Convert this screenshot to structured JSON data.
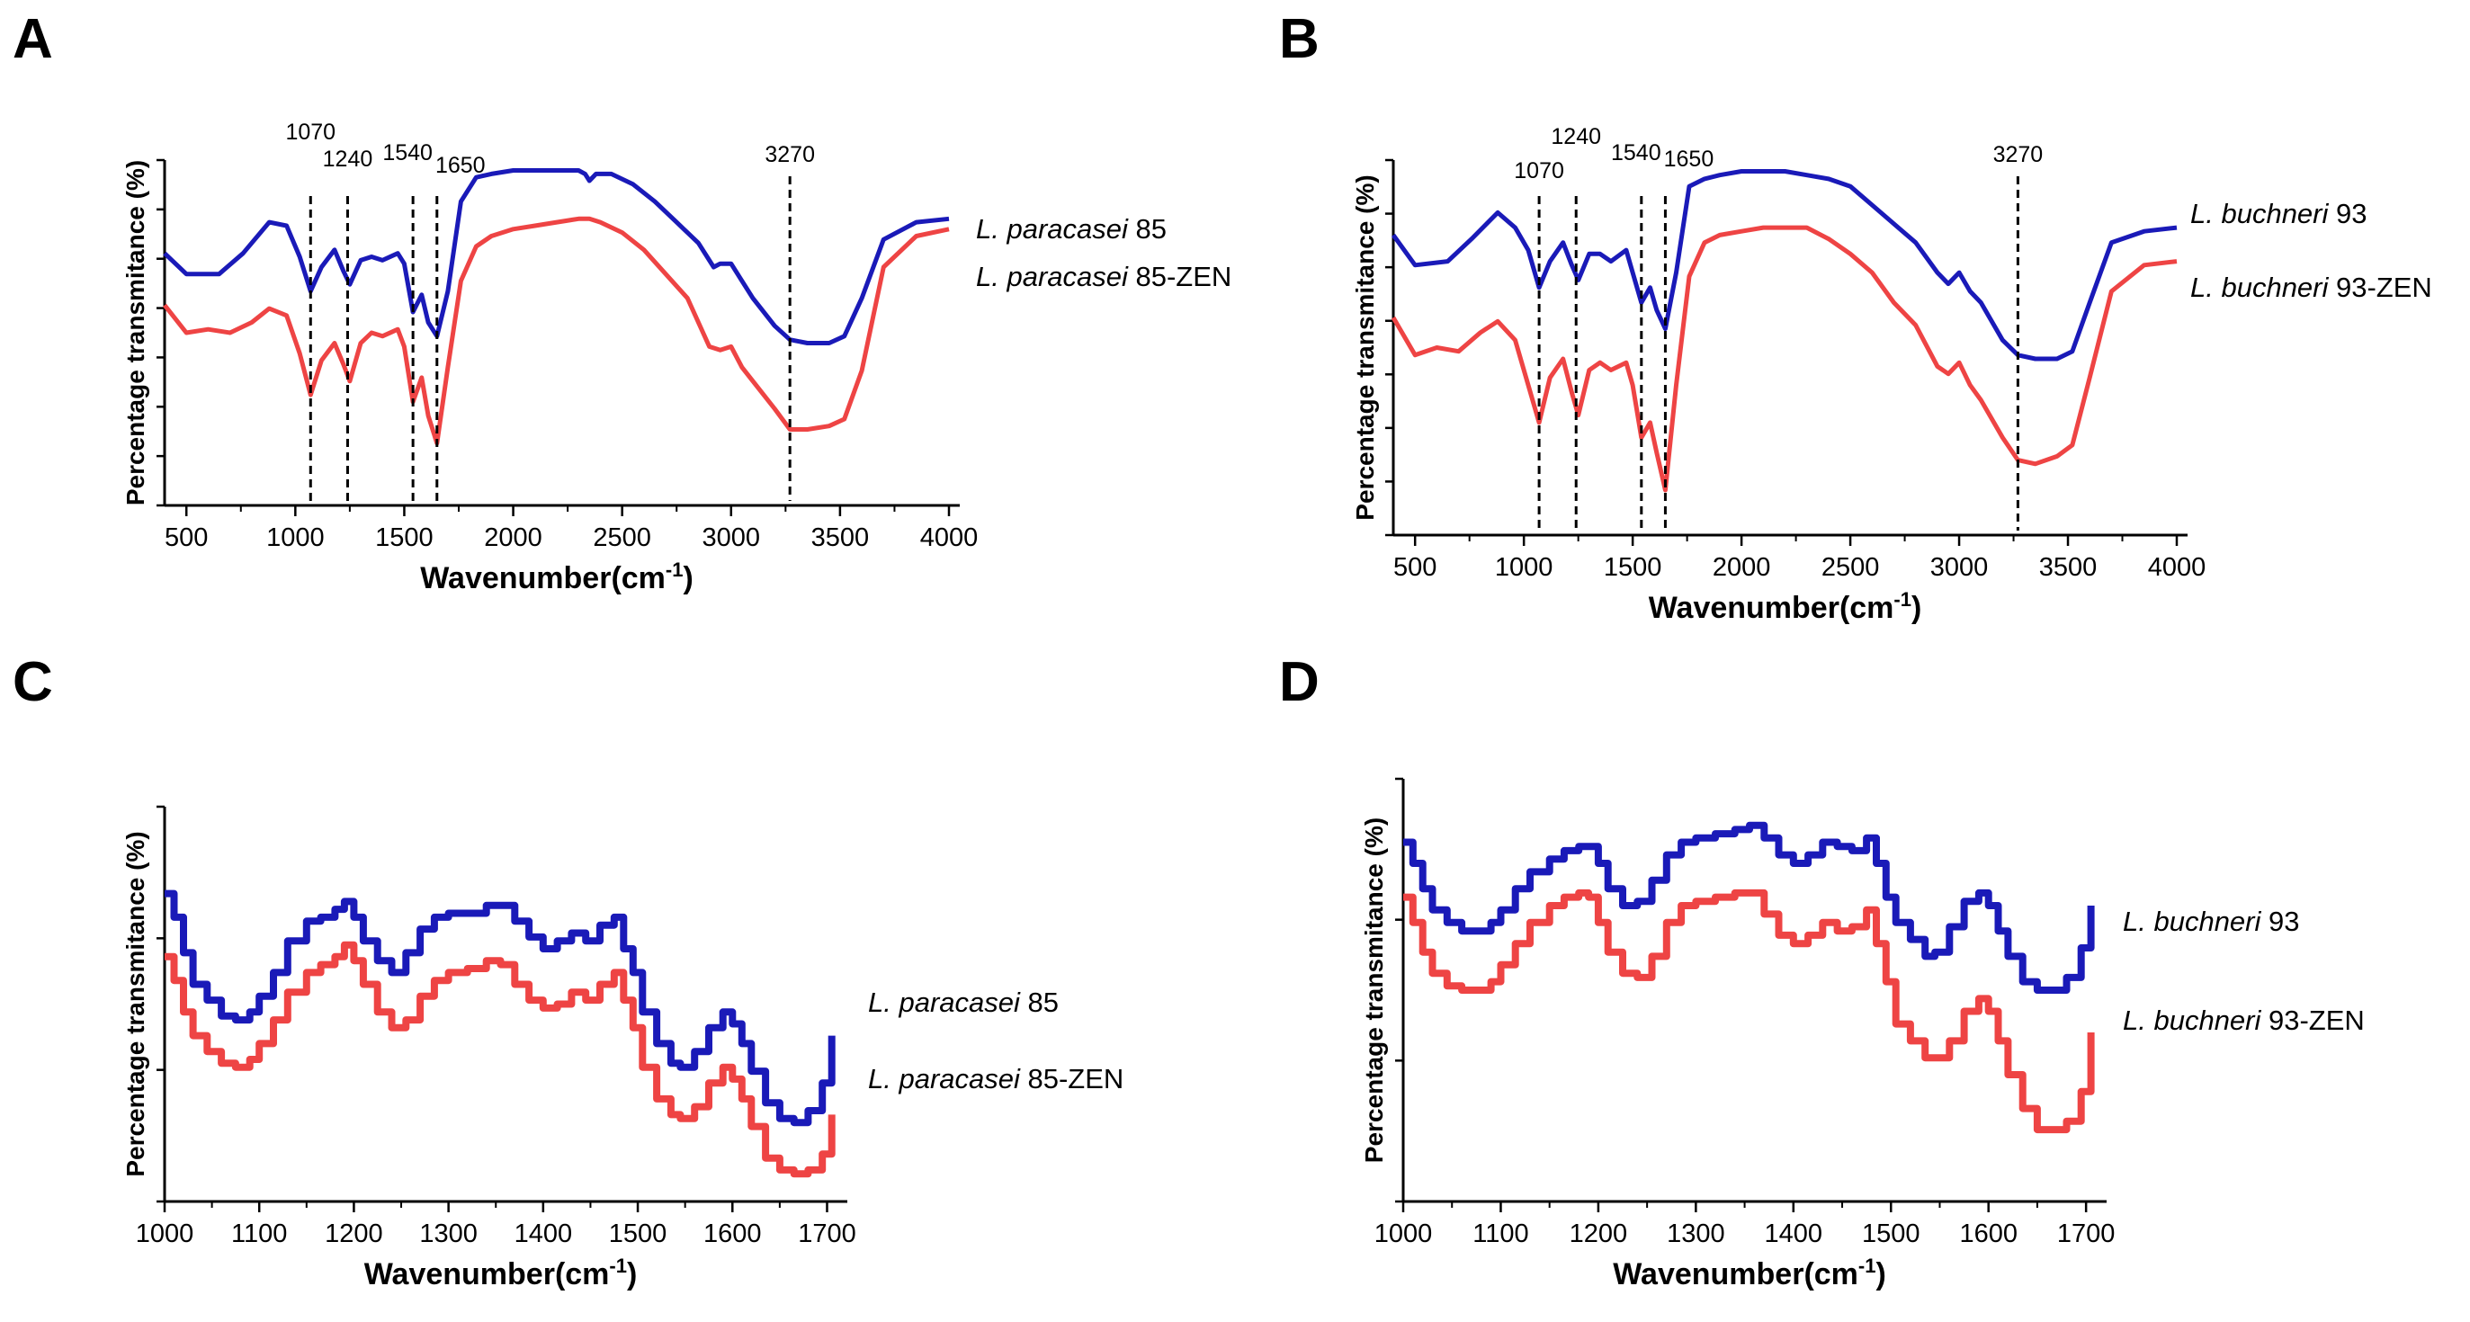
{
  "figure": {
    "panel_letters": [
      "A",
      "B",
      "C",
      "D"
    ]
  },
  "series_colors": {
    "blue": "#1a1ab8",
    "red": "#ee4444"
  },
  "chart_data": [
    {
      "panel": "A",
      "type": "line",
      "title": "",
      "xlabel_main": "Wavenumber(cm",
      "xlabel_sup": "-1",
      "xlabel_end": ")",
      "ylabel": "Percentage transmitance (%)",
      "xlim": [
        400,
        4000
      ],
      "ylim": [
        0,
        100
      ],
      "xticks": [
        500,
        1000,
        1500,
        2000,
        2500,
        3000,
        3500,
        4000
      ],
      "y_minor_ticks": 7,
      "peaks": [
        1070,
        1240,
        1540,
        1650,
        3270
      ],
      "peak_labels": [
        "1070",
        "1240",
        "1540",
        "1650",
        "3270"
      ],
      "legend_prefix": [
        "L. paracasei",
        "L. paracasei"
      ],
      "legend_suffix": [
        " 85",
        " 85-ZEN"
      ],
      "series": [
        {
          "name": "L. paracasei 85",
          "color": "#1a1ab8",
          "x": [
            400,
            500,
            650,
            760,
            880,
            960,
            1020,
            1070,
            1120,
            1180,
            1220,
            1250,
            1300,
            1350,
            1400,
            1470,
            1500,
            1540,
            1580,
            1610,
            1650,
            1700,
            1760,
            1830,
            1900,
            2000,
            2100,
            2200,
            2300,
            2330,
            2350,
            2380,
            2450,
            2550,
            2650,
            2750,
            2850,
            2920,
            2950,
            3000,
            3050,
            3100,
            3200,
            3270,
            3350,
            3450,
            3520,
            3600,
            3700,
            3850,
            4000
          ],
          "y": [
            73,
            67,
            67,
            73,
            82,
            81,
            72,
            62,
            69,
            74,
            68,
            64,
            71,
            72,
            71,
            73,
            70,
            56,
            61,
            53,
            49,
            62,
            88,
            95,
            96,
            97,
            97,
            97,
            97,
            96,
            94,
            96,
            96,
            93,
            88,
            82,
            76,
            69,
            70,
            70,
            65,
            60,
            52,
            48,
            47,
            47,
            49,
            60,
            77,
            82,
            83
          ]
        },
        {
          "name": "L. paracasei 85-ZEN",
          "color": "#ee4444",
          "x": [
            400,
            500,
            600,
            700,
            800,
            880,
            960,
            1020,
            1070,
            1120,
            1180,
            1220,
            1250,
            1300,
            1350,
            1400,
            1470,
            1500,
            1540,
            1580,
            1610,
            1650,
            1700,
            1760,
            1830,
            1900,
            2000,
            2100,
            2200,
            2300,
            2350,
            2400,
            2500,
            2600,
            2700,
            2800,
            2900,
            2950,
            3000,
            3050,
            3100,
            3200,
            3270,
            3350,
            3450,
            3520,
            3600,
            3700,
            3850,
            4000
          ],
          "y": [
            58,
            50,
            51,
            50,
            53,
            57,
            55,
            44,
            32,
            42,
            47,
            41,
            36,
            47,
            50,
            49,
            51,
            46,
            30,
            37,
            26,
            18,
            40,
            65,
            75,
            78,
            80,
            81,
            82,
            83,
            83,
            82,
            79,
            74,
            67,
            60,
            46,
            45,
            46,
            40,
            36,
            28,
            22,
            22,
            23,
            25,
            39,
            69,
            78,
            80
          ]
        }
      ]
    },
    {
      "panel": "B",
      "type": "line",
      "title": "",
      "xlabel_main": "Wavenumber(cm",
      "xlabel_sup": "-1",
      "xlabel_end": ")",
      "ylabel": "Percentage transmitance (%)",
      "xlim": [
        400,
        4000
      ],
      "ylim": [
        0,
        100
      ],
      "xticks": [
        500,
        1000,
        1500,
        2000,
        2500,
        3000,
        3500,
        4000
      ],
      "y_minor_ticks": 7,
      "peaks": [
        1070,
        1240,
        1540,
        1650,
        3270
      ],
      "peak_labels": [
        "1070",
        "1240",
        "1540",
        "1650",
        "3270"
      ],
      "legend_prefix": [
        "L. buchneri",
        "L. buchneri"
      ],
      "legend_suffix": [
        "  93",
        "  93-ZEN"
      ],
      "series": [
        {
          "name": "L. buchneri 93",
          "color": "#1a1ab8",
          "x": [
            400,
            500,
            650,
            760,
            880,
            960,
            1020,
            1070,
            1120,
            1180,
            1220,
            1250,
            1300,
            1350,
            1400,
            1470,
            1500,
            1540,
            1580,
            1610,
            1650,
            1700,
            1760,
            1830,
            1900,
            2000,
            2100,
            2200,
            2300,
            2400,
            2500,
            2600,
            2700,
            2800,
            2900,
            2950,
            3000,
            3050,
            3100,
            3200,
            3270,
            3350,
            3450,
            3520,
            3600,
            3700,
            3850,
            4000
          ],
          "y": [
            80,
            72,
            73,
            79,
            86,
            82,
            76,
            66,
            73,
            78,
            72,
            68,
            75,
            75,
            73,
            76,
            70,
            62,
            66,
            60,
            55,
            70,
            93,
            95,
            96,
            97,
            97,
            97,
            96,
            95,
            93,
            88,
            83,
            78,
            70,
            67,
            70,
            65,
            62,
            52,
            48,
            47,
            47,
            49,
            62,
            78,
            81,
            82
          ]
        },
        {
          "name": "L. buchneri 93-ZEN",
          "color": "#ee4444",
          "x": [
            400,
            500,
            600,
            700,
            800,
            880,
            960,
            1020,
            1070,
            1120,
            1180,
            1220,
            1250,
            1300,
            1350,
            1400,
            1470,
            1500,
            1540,
            1580,
            1610,
            1650,
            1700,
            1760,
            1830,
            1900,
            2000,
            2100,
            2200,
            2300,
            2400,
            2500,
            2600,
            2700,
            2800,
            2900,
            2950,
            3000,
            3050,
            3100,
            3200,
            3270,
            3350,
            3450,
            3520,
            3600,
            3700,
            3850,
            4000
          ],
          "y": [
            58,
            48,
            50,
            49,
            54,
            57,
            52,
            40,
            30,
            42,
            47,
            38,
            32,
            44,
            46,
            44,
            46,
            40,
            26,
            30,
            22,
            12,
            40,
            69,
            78,
            80,
            81,
            82,
            82,
            82,
            79,
            75,
            70,
            62,
            56,
            45,
            43,
            46,
            40,
            36,
            26,
            20,
            19,
            21,
            24,
            42,
            65,
            72,
            73
          ]
        }
      ]
    },
    {
      "panel": "C",
      "type": "line",
      "step": true,
      "title": "",
      "xlabel_main": "Wavenumber(cm",
      "xlabel_sup": "-1",
      "xlabel_end": ")",
      "ylabel": "Percentage transmitance (%)",
      "xlim": [
        1000,
        1710
      ],
      "ylim": [
        0,
        100
      ],
      "xticks": [
        1000,
        1100,
        1200,
        1300,
        1400,
        1500,
        1600,
        1700
      ],
      "y_minor_ticks": 3,
      "legend_prefix": [
        "L. paracasei",
        "L. paracasei"
      ],
      "legend_suffix": [
        " 85",
        " 85-ZEN"
      ],
      "series": [
        {
          "name": "L. paracasei 85",
          "color": "#1a1ab8",
          "x": [
            1000,
            1010,
            1020,
            1030,
            1045,
            1060,
            1075,
            1090,
            1100,
            1115,
            1130,
            1150,
            1165,
            1180,
            1190,
            1200,
            1210,
            1225,
            1240,
            1255,
            1270,
            1285,
            1300,
            1320,
            1340,
            1355,
            1370,
            1385,
            1400,
            1415,
            1430,
            1445,
            1460,
            1475,
            1485,
            1495,
            1505,
            1520,
            1535,
            1545,
            1560,
            1575,
            1590,
            1600,
            1610,
            1620,
            1635,
            1650,
            1665,
            1680,
            1695,
            1705
          ],
          "y": [
            78,
            72,
            63,
            55,
            51,
            47,
            46,
            48,
            52,
            58,
            66,
            71,
            72,
            74,
            76,
            72,
            66,
            61,
            58,
            63,
            69,
            72,
            73,
            73,
            75,
            75,
            71,
            67,
            64,
            66,
            68,
            66,
            70,
            72,
            64,
            58,
            48,
            40,
            35,
            34,
            38,
            44,
            48,
            45,
            40,
            33,
            25,
            21,
            20,
            23,
            30,
            42
          ]
        },
        {
          "name": "L. paracasei 85-ZEN",
          "color": "#ee4444",
          "x": [
            1000,
            1010,
            1020,
            1030,
            1045,
            1060,
            1075,
            1090,
            1100,
            1115,
            1130,
            1150,
            1165,
            1180,
            1190,
            1200,
            1210,
            1225,
            1240,
            1255,
            1270,
            1285,
            1300,
            1320,
            1340,
            1355,
            1370,
            1385,
            1400,
            1415,
            1430,
            1445,
            1460,
            1475,
            1485,
            1495,
            1505,
            1520,
            1535,
            1545,
            1560,
            1575,
            1590,
            1600,
            1610,
            1620,
            1635,
            1650,
            1665,
            1680,
            1695,
            1705
          ],
          "y": [
            62,
            56,
            48,
            42,
            38,
            35,
            34,
            36,
            40,
            46,
            53,
            58,
            60,
            62,
            65,
            61,
            55,
            48,
            44,
            46,
            52,
            56,
            58,
            59,
            61,
            60,
            55,
            51,
            49,
            50,
            53,
            51,
            55,
            58,
            51,
            44,
            34,
            26,
            22,
            21,
            24,
            30,
            34,
            31,
            26,
            19,
            11,
            8,
            7,
            8,
            12,
            22
          ]
        }
      ]
    },
    {
      "panel": "D",
      "type": "line",
      "step": true,
      "title": "",
      "xlabel_main": "Wavenumber(cm",
      "xlabel_sup": "-1",
      "xlabel_end": ")",
      "ylabel": "Percentage transmitance (%)",
      "xlim": [
        1000,
        1710
      ],
      "ylim": [
        0,
        100
      ],
      "xticks": [
        1000,
        1100,
        1200,
        1300,
        1400,
        1500,
        1600,
        1700
      ],
      "y_minor_ticks": 3,
      "legend_prefix": [
        "L. buchneri",
        "L. buchneri"
      ],
      "legend_suffix": [
        "  93",
        "  93-ZEN"
      ],
      "series": [
        {
          "name": "L. buchneri 93",
          "color": "#1a1ab8",
          "x": [
            1000,
            1010,
            1020,
            1030,
            1045,
            1060,
            1075,
            1090,
            1100,
            1115,
            1130,
            1150,
            1165,
            1180,
            1190,
            1200,
            1210,
            1225,
            1240,
            1255,
            1270,
            1285,
            1300,
            1320,
            1340,
            1355,
            1370,
            1385,
            1400,
            1415,
            1430,
            1445,
            1460,
            1475,
            1485,
            1495,
            1505,
            1520,
            1535,
            1545,
            1560,
            1575,
            1590,
            1600,
            1610,
            1620,
            1635,
            1650,
            1665,
            1680,
            1695,
            1705
          ],
          "y": [
            85,
            80,
            74,
            69,
            66,
            64,
            64,
            66,
            69,
            74,
            78,
            81,
            83,
            84,
            84,
            80,
            74,
            70,
            71,
            76,
            82,
            85,
            86,
            87,
            88,
            89,
            86,
            82,
            80,
            82,
            85,
            84,
            83,
            86,
            80,
            72,
            66,
            62,
            58,
            59,
            65,
            71,
            73,
            70,
            64,
            58,
            52,
            50,
            50,
            53,
            60,
            70
          ]
        },
        {
          "name": "L. buchneri 93-ZEN",
          "color": "#ee4444",
          "x": [
            1000,
            1010,
            1020,
            1030,
            1045,
            1060,
            1075,
            1090,
            1100,
            1115,
            1130,
            1150,
            1165,
            1180,
            1190,
            1200,
            1210,
            1225,
            1240,
            1255,
            1270,
            1285,
            1300,
            1320,
            1340,
            1355,
            1370,
            1385,
            1400,
            1415,
            1430,
            1445,
            1460,
            1475,
            1485,
            1495,
            1505,
            1520,
            1535,
            1545,
            1560,
            1575,
            1590,
            1600,
            1610,
            1620,
            1635,
            1650,
            1665,
            1680,
            1695,
            1705
          ],
          "y": [
            72,
            66,
            59,
            54,
            51,
            50,
            50,
            52,
            56,
            61,
            66,
            70,
            72,
            73,
            72,
            66,
            59,
            54,
            53,
            58,
            66,
            70,
            71,
            72,
            73,
            73,
            68,
            63,
            61,
            63,
            66,
            64,
            65,
            69,
            61,
            52,
            42,
            38,
            34,
            34,
            38,
            45,
            48,
            45,
            38,
            30,
            22,
            17,
            17,
            19,
            26,
            40
          ]
        }
      ]
    }
  ]
}
